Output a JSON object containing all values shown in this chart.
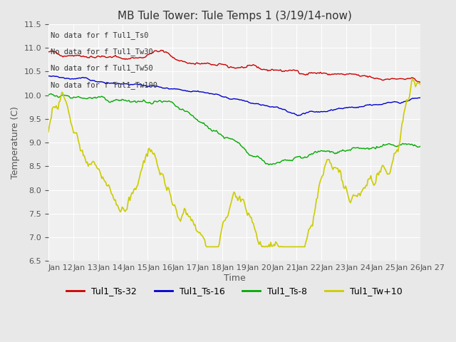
{
  "title": "MB Tule Tower: Tule Temps 1 (3/19/14-now)",
  "xlabel": "Time",
  "ylabel": "Temperature (C)",
  "ylim": [
    6.5,
    11.5
  ],
  "yticks": [
    6.5,
    7.0,
    7.5,
    8.0,
    8.5,
    9.0,
    9.5,
    10.0,
    10.5,
    11.0,
    11.5
  ],
  "background_color": "#e8e8e8",
  "plot_background": "#f0f0f0",
  "legend_labels": [
    "Tul1_Ts-32",
    "Tul1_Ts-16",
    "Tul1_Ts-8",
    "Tul1_Tw+10"
  ],
  "legend_colors": [
    "#cc0000",
    "#0000cc",
    "#00aa00",
    "#cccc00"
  ],
  "no_data_texts": [
    "No data for f Tul1_Ts0",
    "No data for f Tul1_Tw30",
    "No data for f Tul1_Tw50",
    "No data for f Tul1_Tw100"
  ],
  "x_tick_labels": [
    "Jan 12",
    "Jan 13",
    "Jan 14",
    "Jan 15",
    "Jan 16",
    "Jan 17",
    "Jan 18",
    "Jan 19",
    "Jan 20",
    "Jan 21",
    "Jan 22",
    "Jan 23",
    "Jan 24",
    "Jan 25",
    "Jan 26",
    "Jan 27"
  ],
  "num_days": 15,
  "title_fontsize": 11,
  "axis_fontsize": 9,
  "tick_fontsize": 8,
  "legend_fontsize": 9
}
